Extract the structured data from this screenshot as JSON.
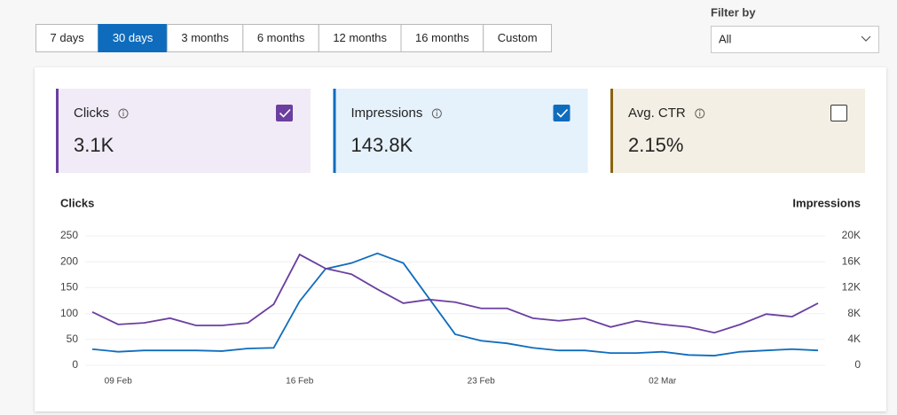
{
  "periods": {
    "options": [
      "7 days",
      "30 days",
      "3 months",
      "6 months",
      "12 months",
      "16 months",
      "Custom"
    ],
    "selected": 1
  },
  "filter": {
    "label": "Filter by",
    "value": "All"
  },
  "metrics": [
    {
      "name": "Clicks",
      "value": "3.1K",
      "checked": true,
      "color": "#6b3fa0",
      "background": "#f0ebf6"
    },
    {
      "name": "Impressions",
      "value": "143.8K",
      "checked": true,
      "color": "#0f6cbd",
      "background": "#e5f1fb"
    },
    {
      "name": "Avg. CTR",
      "value": "2.15%",
      "checked": false,
      "color": "#8a6410",
      "background": "#f4efe4"
    }
  ],
  "chart_data": {
    "type": "line",
    "categories": [
      null,
      "09 Feb",
      null,
      null,
      null,
      null,
      null,
      null,
      "16 Feb",
      null,
      null,
      null,
      null,
      null,
      null,
      "23 Feb",
      null,
      null,
      null,
      null,
      null,
      null,
      "02 Mar",
      null,
      null,
      null,
      null,
      null,
      null
    ],
    "series": [
      {
        "name": "Clicks",
        "color": "#6b3fa0",
        "axis": "y",
        "values": [
          103,
          79,
          82,
          91,
          77,
          77,
          82,
          118,
          214,
          187,
          176,
          147,
          120,
          127,
          122,
          110,
          110,
          91,
          86,
          91,
          74,
          86,
          79,
          74,
          63,
          79,
          99,
          94,
          120
        ]
      },
      {
        "name": "Impressions",
        "color": "#0f6cbd",
        "axis": "y2",
        "values": [
          2500,
          2100,
          2300,
          2300,
          2300,
          2200,
          2600,
          2700,
          9900,
          14900,
          15800,
          17300,
          15800,
          10300,
          4800,
          3800,
          3400,
          2700,
          2300,
          2300,
          1900,
          1900,
          2100,
          1600,
          1500,
          2100,
          2300,
          2500,
          2300
        ]
      }
    ],
    "ylim": [
      0,
      250
    ],
    "yticks": [
      0,
      50,
      100,
      150,
      200,
      250
    ],
    "y2lim": [
      0,
      20000
    ],
    "y2ticks": [
      0,
      {
        "value": 4000,
        "label": "4K"
      },
      {
        "value": 8000,
        "label": "8K"
      },
      {
        "value": 12000,
        "label": "12K"
      },
      {
        "value": 16000,
        "label": "16K"
      },
      {
        "value": 20000,
        "label": "20K"
      }
    ],
    "grid": true
  }
}
